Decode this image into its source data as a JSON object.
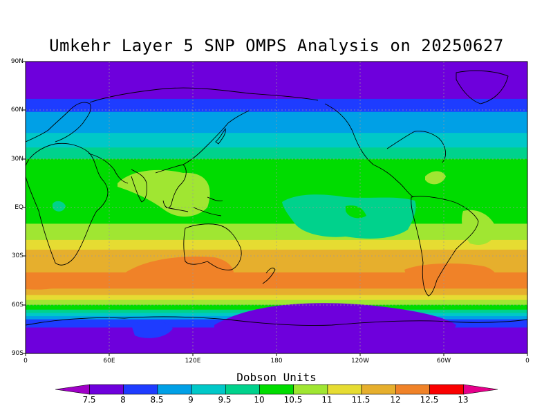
{
  "title": "Umkehr Layer 5 SNP OMPS Analysis on 20250627",
  "lat_labels": [
    "90N",
    "60N",
    "30N",
    "EQ",
    "30S",
    "60S",
    "90S"
  ],
  "lon_labels": [
    "0",
    "60E",
    "120E",
    "180",
    "120W",
    "60W",
    "0"
  ],
  "colorbar": {
    "title": "Dobson Units",
    "labels": [
      "7.5",
      "8",
      "8.5",
      "9",
      "9.5",
      "10",
      "10.5",
      "11",
      "11.5",
      "12",
      "12.5",
      "13"
    ],
    "colors": [
      "#a000c8",
      "#6e00dc",
      "#1e3cff",
      "#00a0e6",
      "#00c8c8",
      "#00d28c",
      "#00dc00",
      "#a0e632",
      "#e6dc32",
      "#e6af2d",
      "#f08228",
      "#fa0000",
      "#e6008c"
    ]
  },
  "map_bands": [
    {
      "color": "#6e00dc",
      "lat_top": 90,
      "lat_bottom": 67
    },
    {
      "color": "#1e3cff",
      "lat_top": 67,
      "lat_bottom": 59
    },
    {
      "color": "#00a0e6",
      "lat_top": 59,
      "lat_bottom": 46
    },
    {
      "color": "#00c8c8",
      "lat_top": 46,
      "lat_bottom": 37
    },
    {
      "color": "#00d28c",
      "lat_top": 37,
      "lat_bottom": 30
    },
    {
      "color": "#00dc00",
      "lat_top": 30,
      "lat_bottom": -10
    },
    {
      "color": "#a0e632",
      "lat_top": -10,
      "lat_bottom": -20
    },
    {
      "color": "#e6dc32",
      "lat_top": -20,
      "lat_bottom": -26
    },
    {
      "color": "#e6af2d",
      "lat_top": -26,
      "lat_bottom": -40
    },
    {
      "color": "#f08228",
      "lat_top": -40,
      "lat_bottom": -50
    },
    {
      "color": "#e6af2d",
      "lat_top": -50,
      "lat_bottom": -54
    },
    {
      "color": "#e6dc32",
      "lat_top": -54,
      "lat_bottom": -57
    },
    {
      "color": "#a0e632",
      "lat_top": -57,
      "lat_bottom": -60
    },
    {
      "color": "#00dc00",
      "lat_top": -60,
      "lat_bottom": -63
    },
    {
      "color": "#00d28c",
      "lat_top": -63,
      "lat_bottom": -65
    },
    {
      "color": "#00c8c8",
      "lat_top": -65,
      "lat_bottom": -67
    },
    {
      "color": "#00a0e6",
      "lat_top": -67,
      "lat_bottom": -69
    },
    {
      "color": "#1e3cff",
      "lat_top": -69,
      "lat_bottom": -74
    },
    {
      "color": "#6e00dc",
      "lat_top": -74,
      "lat_bottom": -90
    }
  ]
}
